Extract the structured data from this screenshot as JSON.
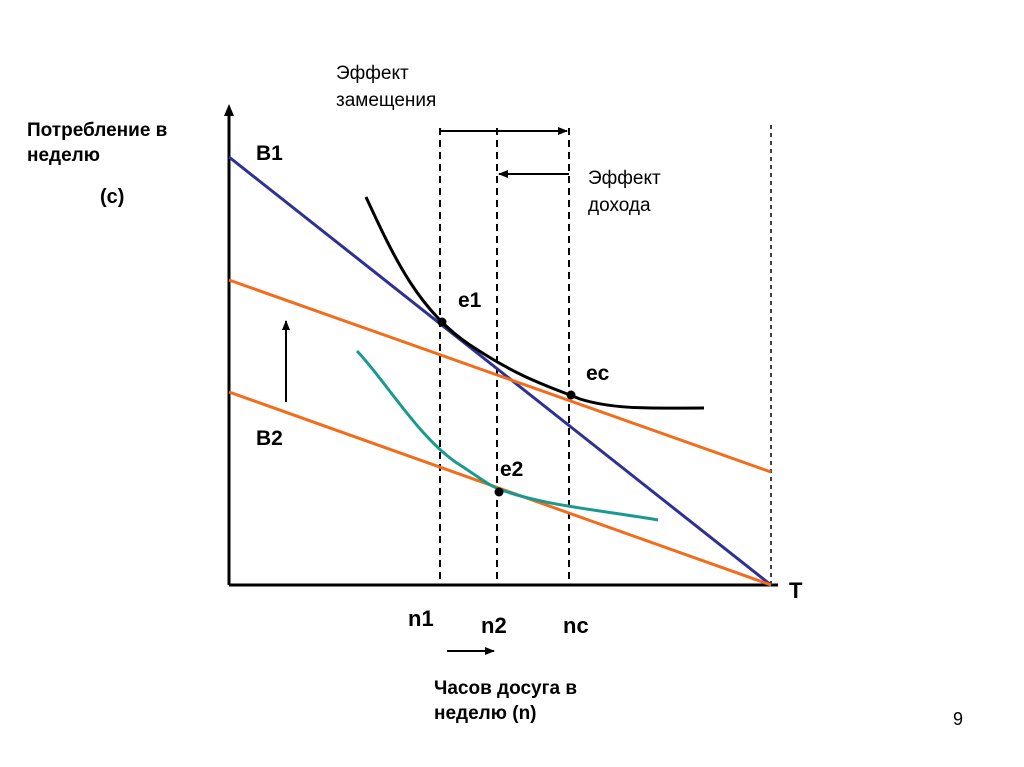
{
  "diagram": {
    "y_axis_label": "Потребление в неделю",
    "y_axis_symbol": "(с)",
    "x_axis_label": "Часов досуга в неделю (n)",
    "x_axis_end": "T",
    "budget_lines": {
      "b1": "B1",
      "b2": "B2"
    },
    "points": {
      "e1": "e1",
      "ec": "ec",
      "e2": "e2"
    },
    "ticks": {
      "n1": "n1",
      "n2": "n2",
      "nc": "nc"
    },
    "effects": {
      "substitution": "Эффект замещения",
      "income": "Эффект дохода"
    },
    "colors": {
      "axis": "#000000",
      "budget_b1": "#2e3192",
      "budget_orange": "#f26c1b",
      "indifference_high": "#000000",
      "indifference_low": "#1a9a8f"
    }
  },
  "page_number": "9"
}
